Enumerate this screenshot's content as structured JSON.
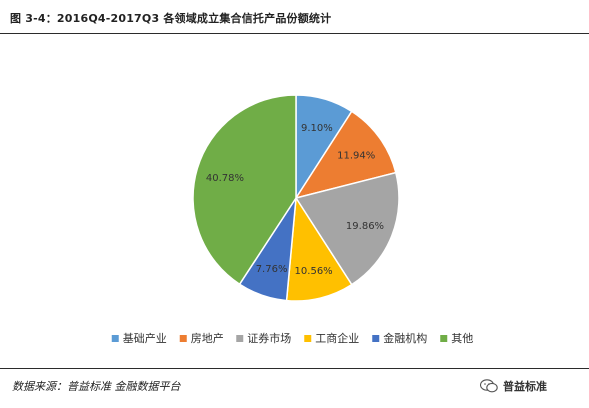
{
  "figure_caption": "图 3-4：2016Q4-2017Q3 各领域成立集合信托产品份额统计",
  "source_text": "数据来源：普益标准 金融数据平台",
  "brand": {
    "name": "普益标准",
    "icon": "wechat-icon"
  },
  "chart_data": {
    "type": "pie",
    "title": "",
    "categories": [
      "基础产业",
      "房地产",
      "证券市场",
      "工商企业",
      "金融机构",
      "其他"
    ],
    "values": [
      9.1,
      11.94,
      19.86,
      10.56,
      7.76,
      40.78
    ],
    "labels": [
      "9.10%",
      "11.94%",
      "19.86%",
      "10.56%",
      "7.76%",
      "40.78%"
    ],
    "colors": [
      "#5b9bd5",
      "#ed7d31",
      "#a5a5a5",
      "#ffc000",
      "#4472c4",
      "#70ad47"
    ],
    "legend_position": "bottom",
    "start_angle": "12 o'clock",
    "direction": "clockwise"
  }
}
